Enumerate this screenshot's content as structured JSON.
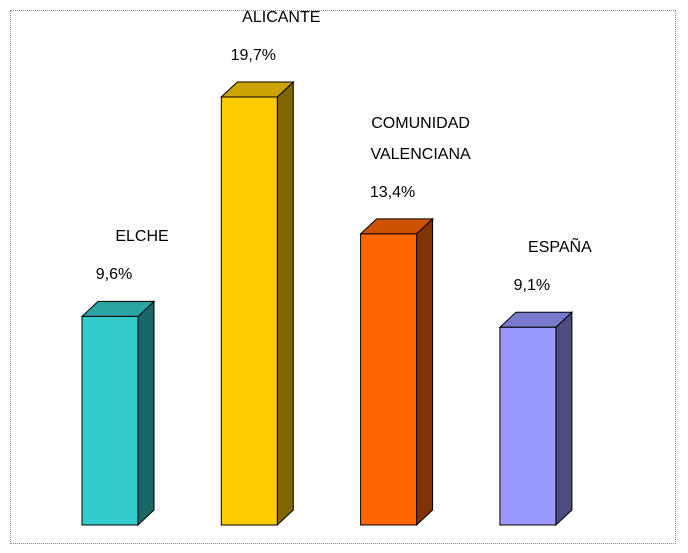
{
  "chart_data": {
    "type": "bar3d",
    "categories": [
      "ELCHE",
      "ALICANTE",
      "COMUNIDAD VALENCIANA",
      "ESPAÑA"
    ],
    "values": [
      9.6,
      19.7,
      13.4,
      9.1
    ],
    "value_labels": [
      "9,6%",
      "19,7%",
      "13,4%",
      "9,1%"
    ],
    "colors": [
      "#33CCCC",
      "#FFCC00",
      "#FF6600",
      "#9999FF"
    ]
  }
}
